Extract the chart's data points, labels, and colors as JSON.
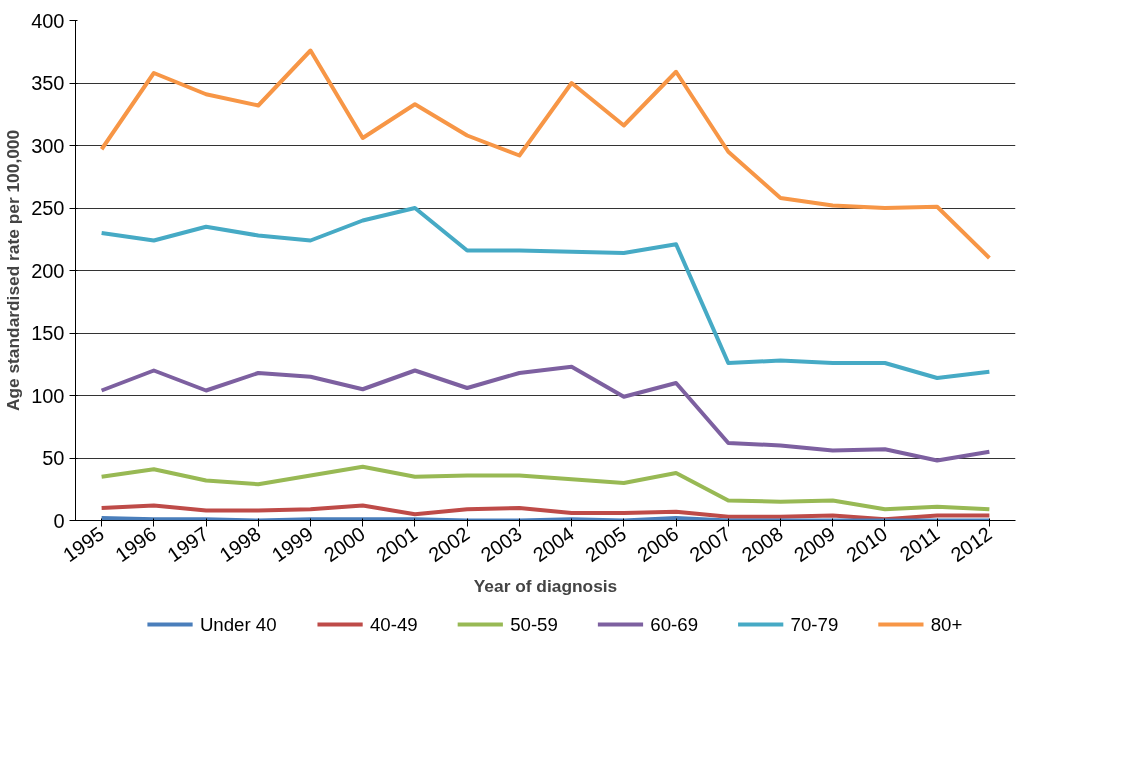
{
  "chart_data": {
    "type": "line",
    "xlabel": "Year of diagnosis",
    "ylabel": "Age standardised rate per 100,000",
    "categories": [
      "1995",
      "1996",
      "1997",
      "1998",
      "1999",
      "2000",
      "2001",
      "2002",
      "2003",
      "2004",
      "2005",
      "2006",
      "2007",
      "2008",
      "2009",
      "2010",
      "2011",
      "2012"
    ],
    "ylim": [
      0,
      400
    ],
    "yticks": [
      0,
      50,
      100,
      150,
      200,
      250,
      300,
      350,
      400
    ],
    "grid": "y",
    "legend": "bottom",
    "marker": "none",
    "line_style": "solid",
    "series": [
      {
        "name": "Under 40",
        "color": "#4a7ebb",
        "values": [
          2,
          1,
          1,
          0,
          1,
          1,
          1,
          0,
          0,
          1,
          0,
          2,
          0,
          0,
          0,
          0,
          0,
          0
        ]
      },
      {
        "name": "40-49",
        "color": "#be4b48",
        "values": [
          10,
          12,
          8,
          8,
          9,
          12,
          5,
          9,
          10,
          6,
          6,
          7,
          3,
          3,
          4,
          1,
          4,
          4
        ]
      },
      {
        "name": "50-59",
        "color": "#98b954",
        "values": [
          35,
          41,
          32,
          29,
          36,
          43,
          35,
          36,
          36,
          33,
          30,
          38,
          16,
          15,
          16,
          9,
          11,
          9
        ]
      },
      {
        "name": "60-69",
        "color": "#7d60a0",
        "values": [
          104,
          120,
          104,
          118,
          115,
          105,
          120,
          106,
          118,
          123,
          99,
          110,
          62,
          60,
          56,
          57,
          48,
          55
        ]
      },
      {
        "name": "70-79",
        "color": "#46aac5",
        "values": [
          230,
          224,
          235,
          228,
          224,
          240,
          250,
          216,
          216,
          215,
          214,
          221,
          126,
          128,
          126,
          126,
          114,
          119
        ]
      },
      {
        "name": "80+",
        "color": "#f79646",
        "values": [
          297,
          358,
          341,
          332,
          376,
          306,
          333,
          308,
          292,
          350,
          316,
          359,
          295,
          258,
          252,
          250,
          251,
          210
        ]
      }
    ]
  }
}
